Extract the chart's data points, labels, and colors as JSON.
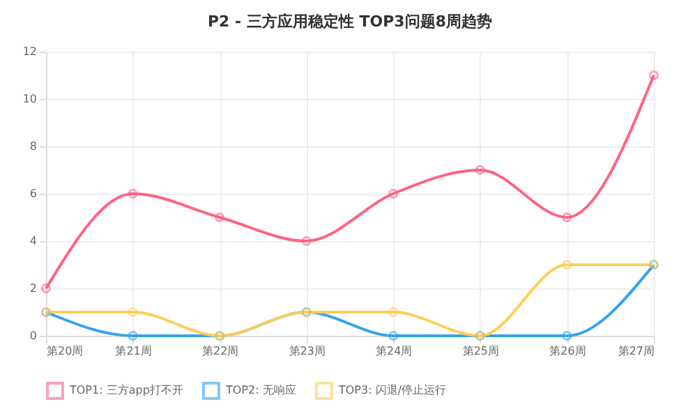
{
  "chart_data": {
    "type": "line",
    "title": "P2 - 三方应用稳定性 TOP3问题8周趋势",
    "categories": [
      "第20周",
      "第21周",
      "第22周",
      "第23周",
      "第24周",
      "第25周",
      "第26周",
      "第27周"
    ],
    "series": [
      {
        "name": "TOP1: 三方app打不开",
        "color": "#ff6384",
        "values": [
          2,
          6,
          5,
          4,
          6,
          7,
          5,
          11
        ]
      },
      {
        "name": "TOP2: 无响应",
        "color": "#36a2eb",
        "values": [
          1,
          0,
          0,
          1,
          0,
          0,
          0,
          3
        ]
      },
      {
        "name": "TOP3: 闪退/停止运行",
        "color": "#ffcd56",
        "values": [
          1,
          1,
          0,
          1,
          1,
          0,
          3,
          3
        ]
      }
    ],
    "ylim": [
      0,
      12
    ],
    "yticks": [
      0,
      2,
      4,
      6,
      8,
      10,
      12
    ],
    "grid": true,
    "legend": "bottom",
    "marker": "circle"
  }
}
